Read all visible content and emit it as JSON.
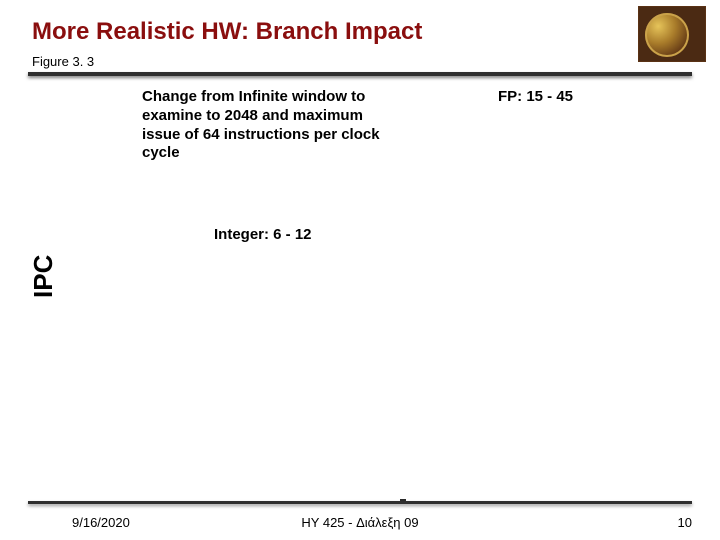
{
  "colors": {
    "title": "#8a0e0e",
    "body": "#000000",
    "footer": "#000000",
    "line": "#2f2f2f",
    "logo_bg": "#4b2a13"
  },
  "fonts": {
    "title_size": 24,
    "figure_label_size": 13,
    "body_size": 15,
    "footer_size": 13,
    "ipc_size": 26
  },
  "header": {
    "title": "More Realistic HW: Branch Impact",
    "figure_label": "Figure 3. 3"
  },
  "content": {
    "change_text": "Change from Infinite window to examine to 2048 and maximum issue of 64 instructions per clock cycle",
    "fp_text": "FP: 15 - 45",
    "integer_text": "Integer: 6 - 12",
    "yaxis_label": "IPC"
  },
  "footer": {
    "date": "9/16/2020",
    "center": "HY 425 - Διάλεξη 09",
    "page": "10"
  }
}
